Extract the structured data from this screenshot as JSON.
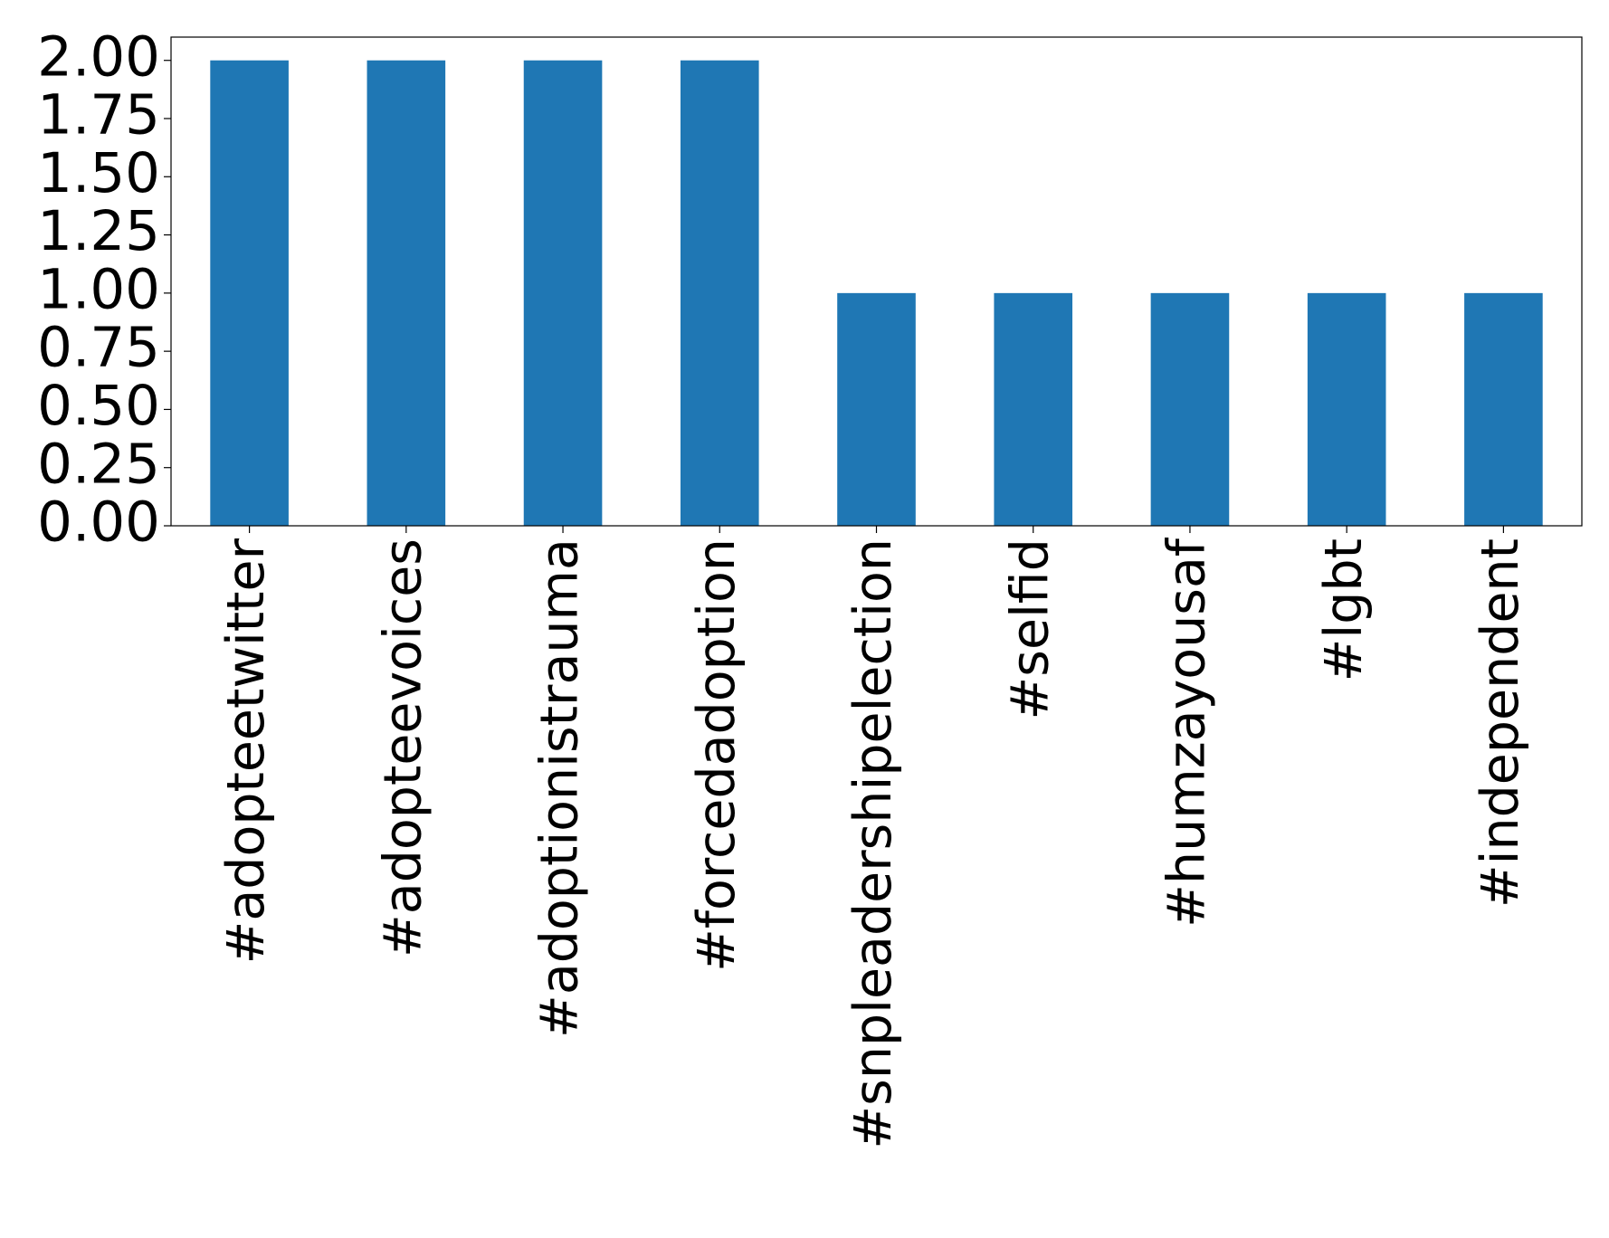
{
  "chart_data": {
    "type": "bar",
    "categories": [
      "#adopteetwitter",
      "#adopteevoices",
      "#adoptionistrauma",
      "#forcedadoption",
      "#snpleadershipelection",
      "#selfid",
      "#humzayousaf",
      "#lgbt",
      "#independent"
    ],
    "values": [
      2,
      2,
      2,
      2,
      1,
      1,
      1,
      1,
      1
    ],
    "color": "#1f77b4",
    "ylim": [
      0,
      2.1
    ],
    "yticks": [
      {
        "value": 0,
        "label": "0.00"
      },
      {
        "value": 0.25,
        "label": "0.25"
      },
      {
        "value": 0.5,
        "label": "0.50"
      },
      {
        "value": 0.75,
        "label": "0.75"
      },
      {
        "value": 1,
        "label": "1.00"
      },
      {
        "value": 1.25,
        "label": "1.25"
      },
      {
        "value": 1.5,
        "label": "1.50"
      },
      {
        "value": 1.75,
        "label": "1.75"
      },
      {
        "value": 2,
        "label": "2.00"
      }
    ],
    "grid": false
  }
}
